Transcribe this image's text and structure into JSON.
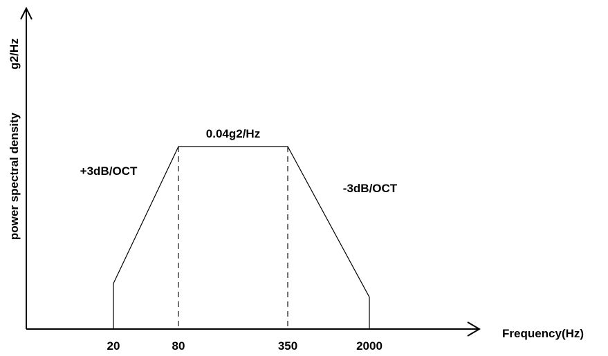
{
  "chart_data": {
    "type": "line",
    "xlabel": "Frequency(Hz)",
    "ylabel": "power spectral density",
    "yunit_label": "g2/Hz",
    "x_ticks": [
      "20",
      "80",
      "350",
      "2000"
    ],
    "x_tick_values": [
      20,
      80,
      350,
      2000
    ],
    "x_scale": "log",
    "y_scale": "linear",
    "grid": false,
    "series": [
      {
        "x": [
          20,
          80,
          350,
          2000
        ],
        "y": [
          0.01,
          0.04,
          0.04,
          0.007
        ]
      }
    ],
    "dashed_markers_at": [
      80,
      350
    ],
    "annotations": [
      {
        "text": "0.04g2/Hz",
        "near": "plateau"
      },
      {
        "text": "+3dB/OCT",
        "near": "rising-slope"
      },
      {
        "text": "-3dB/OCT",
        "near": "falling-slope"
      }
    ]
  }
}
